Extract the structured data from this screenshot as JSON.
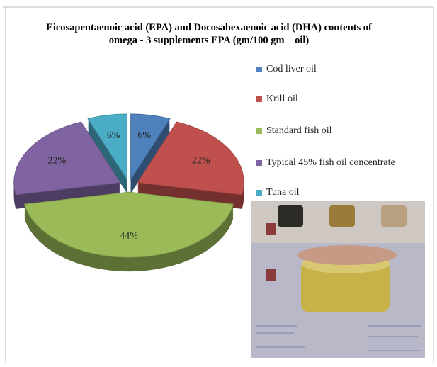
{
  "chart_data": {
    "type": "pie",
    "title": "Eicosapentaenoic acid (EPA) and Docosahexaenoic acid (DHA) contents of omega - 3 supplements EPA (gm/100 gm    oil)",
    "categories": [
      "Cod liver oil",
      "Krill oil",
      "Standard fish oil",
      "Typical 45% fish oil concentrate",
      "Tuna oil"
    ],
    "values": [
      6,
      22,
      44,
      22,
      6
    ],
    "value_labels": [
      "6%",
      "22%",
      "44%",
      "22%",
      "6%"
    ],
    "colors": [
      "#4f81bd",
      "#c0504d",
      "#9bbb59",
      "#8064a2",
      "#4bacc6"
    ],
    "legend": "right"
  }
}
